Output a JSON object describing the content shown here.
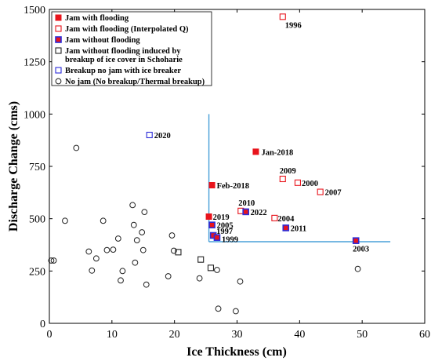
{
  "chart_data": {
    "type": "scatter",
    "title": "",
    "xlabel": "Ice Thickness (cm)",
    "ylabel": "Discharge Change (cms)",
    "xlim": [
      0,
      60
    ],
    "ylim": [
      0,
      1500
    ],
    "x_ticks": [
      "0",
      "10",
      "20",
      "30",
      "40",
      "50",
      "60"
    ],
    "y_ticks": [
      "0",
      "250",
      "500",
      "750",
      "1000",
      "1250",
      "1500"
    ],
    "grid": false,
    "legend_position": "top-left",
    "threshold": {
      "x": 25.5,
      "y": 390,
      "color": "#4aa0d8"
    },
    "legend": [
      {
        "label": "Jam with flooding",
        "marker": "filled-square",
        "color": "#e8141c",
        "border": "#e8141c"
      },
      {
        "label": "Jam with flooding (Interpolated Q)",
        "marker": "open-square",
        "color": "none",
        "border": "#e8141c"
      },
      {
        "label": "Jam without flooding",
        "marker": "filled-square",
        "color": "#e8141c",
        "border": "#2b2bd8"
      },
      {
        "label": "Jam without flooding induced by breakup of ice cover in Schoharie",
        "label_lines": [
          "Jam without flooding induced by",
          "breakup of ice cover in Schoharie"
        ],
        "marker": "open-square",
        "color": "none",
        "border": "#222222"
      },
      {
        "label": "Breakup no jam with ice breaker",
        "marker": "open-square",
        "color": "none",
        "border": "#2b2bd8"
      },
      {
        "label": "No jam (No breakup/Thermal breakup)",
        "marker": "circle",
        "color": "none",
        "border": "#222222"
      }
    ],
    "series": [
      {
        "name": "Jam with flooding",
        "points": [
          {
            "x": 33.0,
            "y": 820,
            "label": "Jan-2018"
          },
          {
            "x": 26.0,
            "y": 660,
            "label": "Feb-2018"
          },
          {
            "x": 25.5,
            "y": 510,
            "label": "2019"
          }
        ]
      },
      {
        "name": "Jam with flooding (Interpolated Q)",
        "points": [
          {
            "x": 37.3,
            "y": 1465,
            "label": "1996"
          },
          {
            "x": 37.3,
            "y": 690,
            "label": "2009"
          },
          {
            "x": 39.7,
            "y": 672,
            "label": "2000"
          },
          {
            "x": 43.3,
            "y": 628,
            "label": "2007"
          },
          {
            "x": 30.6,
            "y": 537,
            "label": "2010"
          },
          {
            "x": 36.0,
            "y": 503,
            "label": "2004"
          }
        ]
      },
      {
        "name": "Jam without flooding",
        "points": [
          {
            "x": 31.4,
            "y": 533,
            "label": "2022"
          },
          {
            "x": 26.0,
            "y": 470,
            "label": "2005"
          },
          {
            "x": 37.8,
            "y": 456,
            "label": "2011"
          },
          {
            "x": 26.2,
            "y": 420,
            "label": "1997"
          },
          {
            "x": 26.8,
            "y": 410,
            "label": "1999"
          },
          {
            "x": 49.0,
            "y": 395,
            "label": "2003"
          }
        ]
      },
      {
        "name": "Jam without flooding induced by breakup of ice cover in Schoharie",
        "points": [
          {
            "x": 20.6,
            "y": 340
          },
          {
            "x": 24.2,
            "y": 305
          },
          {
            "x": 25.8,
            "y": 265
          }
        ]
      },
      {
        "name": "Breakup no jam with ice breaker",
        "points": [
          {
            "x": 16.0,
            "y": 900,
            "label": "2020"
          }
        ]
      },
      {
        "name": "No jam (No breakup/Thermal breakup)",
        "points": [
          {
            "x": 0.3,
            "y": 300
          },
          {
            "x": 0.7,
            "y": 300
          },
          {
            "x": 4.3,
            "y": 838
          },
          {
            "x": 2.5,
            "y": 490
          },
          {
            "x": 6.3,
            "y": 343
          },
          {
            "x": 6.8,
            "y": 252
          },
          {
            "x": 7.5,
            "y": 310
          },
          {
            "x": 8.6,
            "y": 490
          },
          {
            "x": 9.2,
            "y": 350
          },
          {
            "x": 10.2,
            "y": 352
          },
          {
            "x": 11.0,
            "y": 405
          },
          {
            "x": 11.4,
            "y": 205
          },
          {
            "x": 11.7,
            "y": 250
          },
          {
            "x": 13.3,
            "y": 565
          },
          {
            "x": 13.5,
            "y": 470
          },
          {
            "x": 13.7,
            "y": 290
          },
          {
            "x": 14.0,
            "y": 397
          },
          {
            "x": 14.8,
            "y": 435
          },
          {
            "x": 15.0,
            "y": 350
          },
          {
            "x": 15.2,
            "y": 532
          },
          {
            "x": 15.5,
            "y": 185
          },
          {
            "x": 19.0,
            "y": 225
          },
          {
            "x": 19.6,
            "y": 420
          },
          {
            "x": 19.9,
            "y": 347
          },
          {
            "x": 24.0,
            "y": 215
          },
          {
            "x": 26.8,
            "y": 255
          },
          {
            "x": 27.0,
            "y": 70
          },
          {
            "x": 29.8,
            "y": 58
          },
          {
            "x": 30.5,
            "y": 200
          },
          {
            "x": 49.3,
            "y": 260
          }
        ]
      }
    ]
  }
}
